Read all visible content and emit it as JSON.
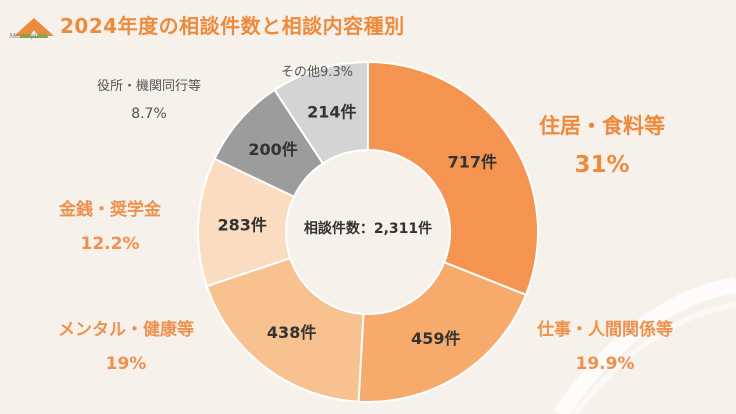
{
  "header": {
    "title": "2024年度の相談件数と相談内容種別",
    "logo_text": "Masterpiece"
  },
  "colors": {
    "background": "#f6f1ea",
    "accent": "#ee8a3c"
  },
  "chart_data": {
    "type": "pie",
    "donut": true,
    "center_label": "相談件数：2,311件",
    "slices": [
      {
        "name": "住居・食料等",
        "percent_label": "31%",
        "count_label": "717件",
        "value": 717,
        "color": "#f59450"
      },
      {
        "name": "仕事・人間関係等",
        "percent_label": "19.9%",
        "count_label": "459件",
        "value": 459,
        "color": "#f6aa6c"
      },
      {
        "name": "メンタル・健康等",
        "percent_label": "19%",
        "count_label": "438件",
        "value": 438,
        "color": "#f8c190"
      },
      {
        "name": "金銭・奨学金",
        "percent_label": "12.2%",
        "count_label": "283件",
        "value": 283,
        "color": "#fadcc0"
      },
      {
        "name": "役所・機関同行等",
        "percent_label": "8.7%",
        "count_label": "200件",
        "value": 200,
        "color": "#9c9c9c"
      },
      {
        "name": "その他",
        "percent_label": "9.3%",
        "count_label": "214件",
        "value": 214,
        "color": "#d4d4d4"
      }
    ]
  }
}
